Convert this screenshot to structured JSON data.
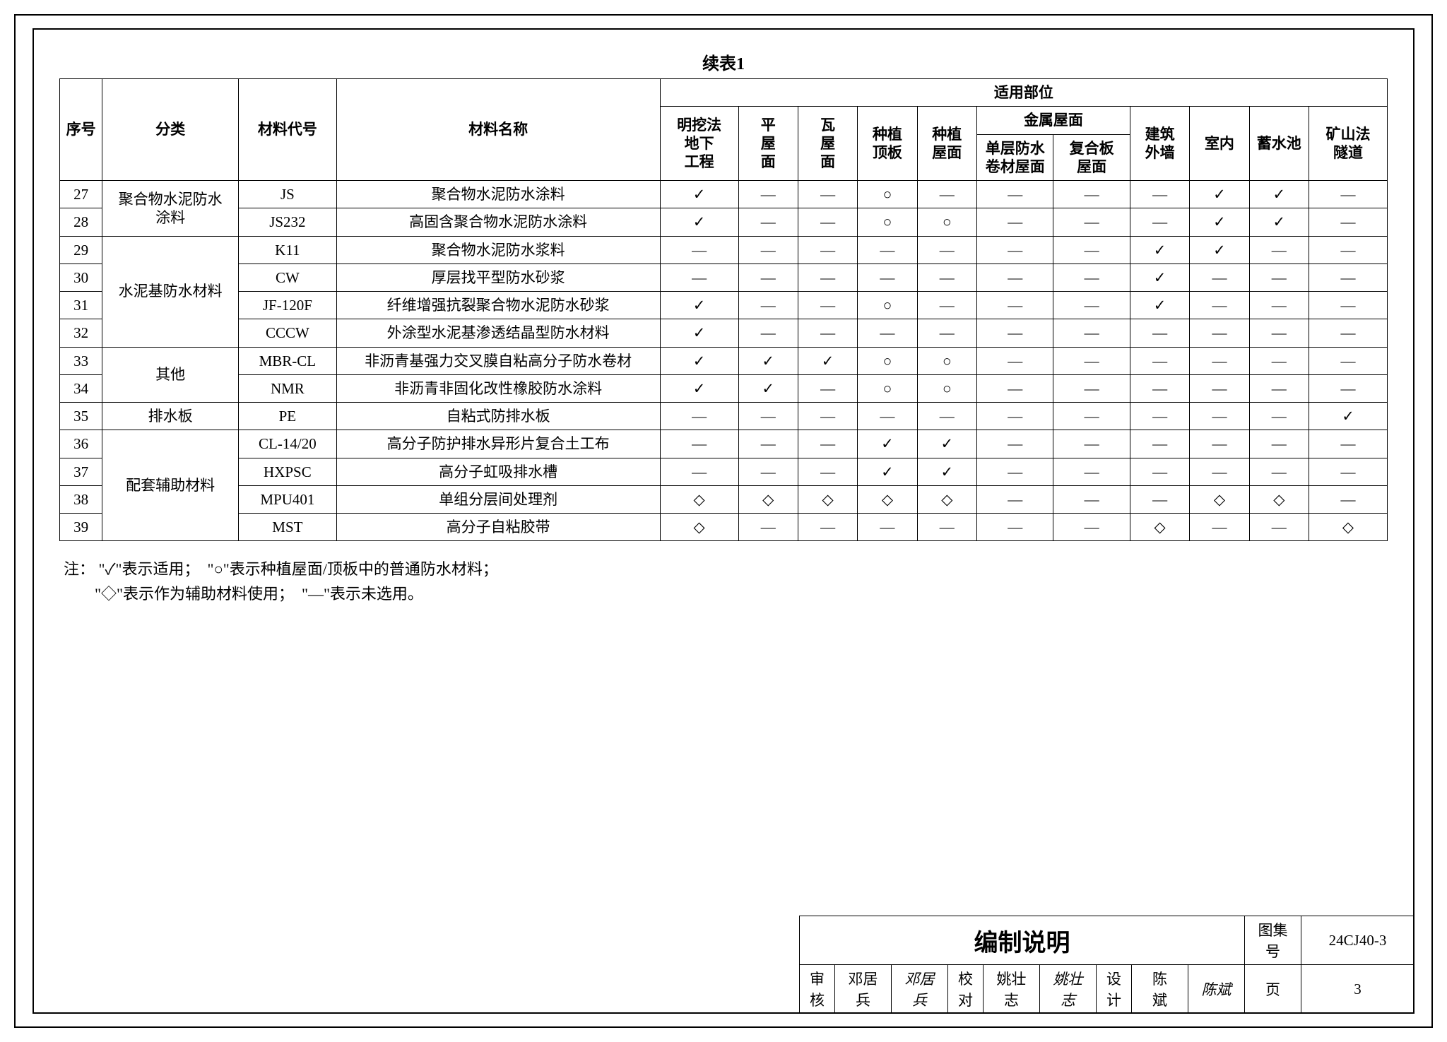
{
  "title": "续表1",
  "columns": {
    "idx": "序号",
    "category": "分类",
    "code": "材料代号",
    "name": "材料名称",
    "applicGroup": "适用部位",
    "app": [
      "明挖法\n地下\n工程",
      "平\n屋\n面",
      "瓦\n屋\n面",
      "种植\n顶板",
      "种植\n屋面",
      "金属屋面",
      "建筑\n外墙",
      "室内",
      "蓄水池",
      "矿山法\n隧道"
    ],
    "metalSub": [
      "单层防水\n卷材屋面",
      "复合板\n屋面"
    ]
  },
  "categories": [
    {
      "label": "聚合物水泥防水\n涂料",
      "span": 2
    },
    {
      "label": "水泥基防水材料",
      "span": 4
    },
    {
      "label": "其他",
      "span": 2
    },
    {
      "label": "排水板",
      "span": 1
    },
    {
      "label": "配套辅助材料",
      "span": 4
    }
  ],
  "rows": [
    {
      "idx": "27",
      "code": "JS",
      "name": "聚合物水泥防水涂料",
      "v": [
        "✓",
        "—",
        "—",
        "○",
        "—",
        "—",
        "—",
        "—",
        "✓",
        "✓",
        "—"
      ]
    },
    {
      "idx": "28",
      "code": "JS232",
      "name": "高固含聚合物水泥防水涂料",
      "v": [
        "✓",
        "—",
        "—",
        "○",
        "○",
        "—",
        "—",
        "—",
        "✓",
        "✓",
        "—"
      ]
    },
    {
      "idx": "29",
      "code": "K11",
      "name": "聚合物水泥防水浆料",
      "v": [
        "—",
        "—",
        "—",
        "—",
        "—",
        "—",
        "—",
        "✓",
        "✓",
        "—",
        "—"
      ]
    },
    {
      "idx": "30",
      "code": "CW",
      "name": "厚层找平型防水砂浆",
      "v": [
        "—",
        "—",
        "—",
        "—",
        "—",
        "—",
        "—",
        "✓",
        "—",
        "—",
        "—"
      ]
    },
    {
      "idx": "31",
      "code": "JF-120F",
      "name": "纤维增强抗裂聚合物水泥防水砂浆",
      "v": [
        "✓",
        "—",
        "—",
        "○",
        "—",
        "—",
        "—",
        "✓",
        "—",
        "—",
        "—"
      ]
    },
    {
      "idx": "32",
      "code": "CCCW",
      "name": "外涂型水泥基渗透结晶型防水材料",
      "v": [
        "✓",
        "—",
        "—",
        "—",
        "—",
        "—",
        "—",
        "—",
        "—",
        "—",
        "—"
      ]
    },
    {
      "idx": "33",
      "code": "MBR-CL",
      "name": "非沥青基强力交叉膜自粘高分子防水卷材",
      "v": [
        "✓",
        "✓",
        "✓",
        "○",
        "○",
        "—",
        "—",
        "—",
        "—",
        "—",
        "—"
      ]
    },
    {
      "idx": "34",
      "code": "NMR",
      "name": "非沥青非固化改性橡胶防水涂料",
      "v": [
        "✓",
        "✓",
        "—",
        "○",
        "○",
        "—",
        "—",
        "—",
        "—",
        "—",
        "—"
      ]
    },
    {
      "idx": "35",
      "code": "PE",
      "name": "自粘式防排水板",
      "v": [
        "—",
        "—",
        "—",
        "—",
        "—",
        "—",
        "—",
        "—",
        "—",
        "—",
        "✓"
      ]
    },
    {
      "idx": "36",
      "code": "CL-14/20",
      "name": "高分子防护排水异形片复合土工布",
      "v": [
        "—",
        "—",
        "—",
        "✓",
        "✓",
        "—",
        "—",
        "—",
        "—",
        "—",
        "—"
      ]
    },
    {
      "idx": "37",
      "code": "HXPSC",
      "name": "高分子虹吸排水槽",
      "v": [
        "—",
        "—",
        "—",
        "✓",
        "✓",
        "—",
        "—",
        "—",
        "—",
        "—",
        "—"
      ]
    },
    {
      "idx": "38",
      "code": "MPU401",
      "name": "单组分层间处理剂",
      "v": [
        "◇",
        "◇",
        "◇",
        "◇",
        "◇",
        "—",
        "—",
        "—",
        "◇",
        "◇",
        "—"
      ]
    },
    {
      "idx": "39",
      "code": "MST",
      "name": "高分子自粘胶带",
      "v": [
        "◇",
        "—",
        "—",
        "—",
        "—",
        "—",
        "—",
        "◇",
        "—",
        "—",
        "◇"
      ]
    }
  ],
  "notes": {
    "prefix": "注：",
    "line1": "\"✓\"表示适用；　\"○\"表示种植屋面/顶板中的普通防水材料；",
    "line2": "\"◇\"表示作为辅助材料使用；　\"—\"表示未选用。"
  },
  "footer": {
    "mainTitle": "编制说明",
    "atlasLabel": "图集号",
    "atlasNo": "24CJ40-3",
    "review": "审核",
    "reviewer": "邓居兵",
    "reviewerSign": "邓居兵",
    "proof": "校对",
    "proofer": "姚壮志",
    "prooferSign": "姚壮志",
    "design": "设计",
    "designer": "陈　斌",
    "designerSign": "陈斌",
    "pageLabel": "页",
    "pageNo": "3"
  }
}
